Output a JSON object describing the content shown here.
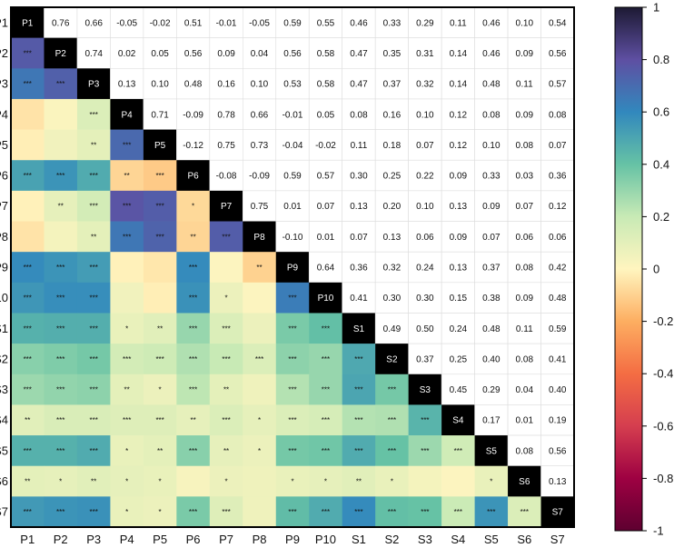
{
  "chart_data": {
    "type": "heatmap",
    "variables": [
      "P1",
      "P2",
      "P3",
      "P4",
      "P5",
      "P6",
      "P7",
      "P8",
      "P9",
      "P10",
      "S1",
      "S2",
      "S3",
      "S4",
      "S5",
      "S6",
      "S7"
    ],
    "upper_values": [
      [
        null,
        0.76,
        0.66,
        -0.05,
        -0.02,
        0.51,
        -0.01,
        -0.05,
        0.59,
        0.55,
        0.46,
        0.33,
        0.29,
        0.11,
        0.46,
        0.1,
        0.54
      ],
      [
        null,
        null,
        0.74,
        0.02,
        0.05,
        0.56,
        0.09,
        0.04,
        0.56,
        0.58,
        0.47,
        0.35,
        0.31,
        0.14,
        0.46,
        0.09,
        0.56
      ],
      [
        null,
        null,
        null,
        0.13,
        0.1,
        0.48,
        0.16,
        0.1,
        0.53,
        0.58,
        0.47,
        0.37,
        0.32,
        0.14,
        0.48,
        0.11,
        0.57
      ],
      [
        null,
        null,
        null,
        null,
        0.71,
        -0.09,
        0.78,
        0.66,
        -0.01,
        0.05,
        0.08,
        0.16,
        0.1,
        0.12,
        0.08,
        0.09,
        0.08
      ],
      [
        null,
        null,
        null,
        null,
        null,
        -0.12,
        0.75,
        0.73,
        -0.04,
        -0.02,
        0.11,
        0.18,
        0.07,
        0.12,
        0.1,
        0.08,
        0.07
      ],
      [
        null,
        null,
        null,
        null,
        null,
        null,
        -0.08,
        -0.09,
        0.59,
        0.57,
        0.3,
        0.25,
        0.22,
        0.09,
        0.33,
        0.03,
        0.36
      ],
      [
        null,
        null,
        null,
        null,
        null,
        null,
        null,
        0.75,
        0.01,
        0.07,
        0.13,
        0.2,
        0.1,
        0.13,
        0.09,
        0.07,
        0.12
      ],
      [
        null,
        null,
        null,
        null,
        null,
        null,
        null,
        null,
        -0.1,
        0.01,
        0.07,
        0.13,
        0.06,
        0.09,
        0.07,
        0.06,
        0.06
      ],
      [
        null,
        null,
        null,
        null,
        null,
        null,
        null,
        null,
        null,
        0.64,
        0.36,
        0.32,
        0.24,
        0.13,
        0.37,
        0.08,
        0.42
      ],
      [
        null,
        null,
        null,
        null,
        null,
        null,
        null,
        null,
        null,
        null,
        0.41,
        0.3,
        0.3,
        0.15,
        0.38,
        0.09,
        0.48
      ],
      [
        null,
        null,
        null,
        null,
        null,
        null,
        null,
        null,
        null,
        null,
        null,
        0.49,
        0.5,
        0.24,
        0.48,
        0.11,
        0.59
      ],
      [
        null,
        null,
        null,
        null,
        null,
        null,
        null,
        null,
        null,
        null,
        null,
        null,
        0.37,
        0.25,
        0.4,
        0.08,
        0.41
      ],
      [
        null,
        null,
        null,
        null,
        null,
        null,
        null,
        null,
        null,
        null,
        null,
        null,
        null,
        0.45,
        0.29,
        0.04,
        0.4
      ],
      [
        null,
        null,
        null,
        null,
        null,
        null,
        null,
        null,
        null,
        null,
        null,
        null,
        null,
        null,
        0.17,
        0.01,
        0.19
      ],
      [
        null,
        null,
        null,
        null,
        null,
        null,
        null,
        null,
        null,
        null,
        null,
        null,
        null,
        null,
        null,
        0.08,
        0.56
      ],
      [
        null,
        null,
        null,
        null,
        null,
        null,
        null,
        null,
        null,
        null,
        null,
        null,
        null,
        null,
        null,
        null,
        0.13
      ],
      [
        null,
        null,
        null,
        null,
        null,
        null,
        null,
        null,
        null,
        null,
        null,
        null,
        null,
        null,
        null,
        null,
        null
      ]
    ],
    "lower_significance": [
      [
        "",
        "",
        "",
        "",
        "",
        "",
        "",
        "",
        "",
        "",
        "",
        "",
        "",
        "",
        "",
        "",
        ""
      ],
      [
        "***",
        "",
        "",
        "",
        "",
        "",
        "",
        "",
        "",
        "",
        "",
        "",
        "",
        "",
        "",
        "",
        ""
      ],
      [
        "***",
        "***",
        "",
        "",
        "",
        "",
        "",
        "",
        "",
        "",
        "",
        "",
        "",
        "",
        "",
        "",
        ""
      ],
      [
        "",
        "",
        "***",
        "",
        "",
        "",
        "",
        "",
        "",
        "",
        "",
        "",
        "",
        "",
        "",
        "",
        ""
      ],
      [
        "",
        "",
        "**",
        "***",
        "",
        "",
        "",
        "",
        "",
        "",
        "",
        "",
        "",
        "",
        "",
        "",
        ""
      ],
      [
        "***",
        "***",
        "***",
        "**",
        "***",
        "",
        "",
        "",
        "",
        "",
        "",
        "",
        "",
        "",
        "",
        "",
        ""
      ],
      [
        "",
        "**",
        "***",
        "***",
        "***",
        "*",
        "",
        "",
        "",
        "",
        "",
        "",
        "",
        "",
        "",
        "",
        ""
      ],
      [
        "",
        "",
        "**",
        "***",
        "***",
        "**",
        "***",
        "",
        "",
        "",
        "",
        "",
        "",
        "",
        "",
        "",
        ""
      ],
      [
        "***",
        "***",
        "***",
        "",
        "",
        "***",
        "",
        "**",
        "",
        "",
        "",
        "",
        "",
        "",
        "",
        "",
        ""
      ],
      [
        "***",
        "***",
        "***",
        "",
        "",
        "***",
        "*",
        "",
        "***",
        "",
        "",
        "",
        "",
        "",
        "",
        "",
        ""
      ],
      [
        "***",
        "***",
        "***",
        "*",
        "**",
        "***",
        "***",
        "",
        "***",
        "***",
        "",
        "",
        "",
        "",
        "",
        "",
        ""
      ],
      [
        "***",
        "***",
        "***",
        "***",
        "***",
        "***",
        "***",
        "***",
        "***",
        "***",
        "***",
        "",
        "",
        "",
        "",
        "",
        ""
      ],
      [
        "***",
        "***",
        "***",
        "**",
        "*",
        "***",
        "**",
        "",
        "***",
        "***",
        "***",
        "***",
        "",
        "",
        "",
        "",
        ""
      ],
      [
        "**",
        "***",
        "***",
        "***",
        "***",
        "**",
        "***",
        "*",
        "***",
        "***",
        "***",
        "***",
        "***",
        "",
        "",
        "",
        ""
      ],
      [
        "***",
        "***",
        "***",
        "*",
        "**",
        "***",
        "**",
        "*",
        "***",
        "***",
        "***",
        "***",
        "***",
        "***",
        "",
        "",
        ""
      ],
      [
        "**",
        "*",
        "**",
        "*",
        "*",
        "",
        "*",
        "",
        "*",
        "*",
        "**",
        "*",
        "",
        "",
        "*",
        "",
        ""
      ],
      [
        "***",
        "***",
        "***",
        "*",
        "*",
        "***",
        "***",
        "",
        "***",
        "***",
        "***",
        "***",
        "***",
        "***",
        "***",
        "***",
        ""
      ]
    ],
    "colorbar": {
      "min": -1,
      "max": 1,
      "ticks": [
        1,
        0.8,
        0.6,
        0.4,
        0.2,
        0,
        -0.2,
        -0.4,
        -0.6,
        -0.8,
        -1
      ]
    },
    "colormap": [
      {
        "v": -1.0,
        "c": "#5e0030"
      },
      {
        "v": -0.8,
        "c": "#9e0142"
      },
      {
        "v": -0.6,
        "c": "#d53e4f"
      },
      {
        "v": -0.4,
        "c": "#f46d43"
      },
      {
        "v": -0.2,
        "c": "#fdae61"
      },
      {
        "v": 0.0,
        "c": "#fff5bf"
      },
      {
        "v": 0.2,
        "c": "#c8eab5"
      },
      {
        "v": 0.4,
        "c": "#66c2a5"
      },
      {
        "v": 0.6,
        "c": "#3288bd"
      },
      {
        "v": 0.8,
        "c": "#5e4fa2"
      },
      {
        "v": 1.0,
        "c": "#1d1a33"
      }
    ],
    "diagonal_color": "#000000"
  }
}
